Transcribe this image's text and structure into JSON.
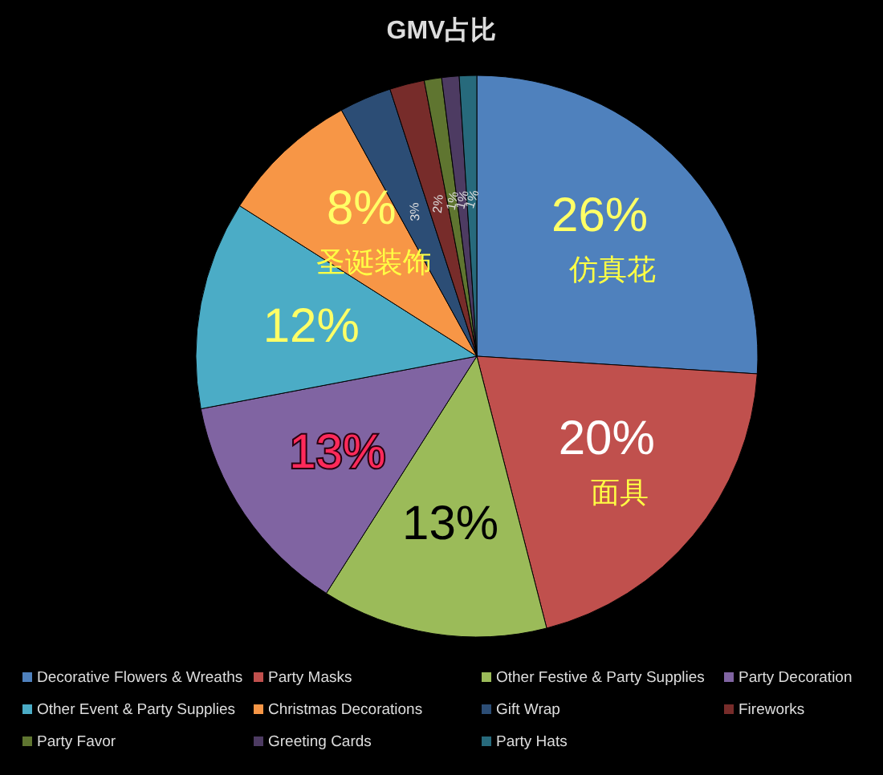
{
  "chart_data": {
    "type": "pie",
    "title": "GMV占比",
    "categories": [
      "Decorative Flowers & Wreaths",
      "Party Masks",
      "Other Festive & Party Supplies",
      "Party Decoration",
      "Other Event & Party Supplies",
      "Christmas Decorations",
      "Gift Wrap",
      "Fireworks",
      "Party Favor",
      "Greeting Cards",
      "Party Hats"
    ],
    "values": [
      26,
      20,
      13,
      13,
      12,
      8,
      3,
      2,
      1,
      1,
      1
    ],
    "value_labels": [
      "26%",
      "20%",
      "13%",
      "13%",
      "12%",
      "8%",
      "3%",
      "2%",
      "1%",
      "1%",
      "1%"
    ],
    "colors": [
      "#4f81bd",
      "#c0504d",
      "#9bbb59",
      "#8064a2",
      "#4bacc6",
      "#f79646",
      "#2c4d75",
      "#772c2a",
      "#5f7530",
      "#4d3b62",
      "#276a7c"
    ],
    "annotations": [
      {
        "text": "仿真花",
        "x": "Decorative Flowers & Wreaths"
      },
      {
        "text": "面具",
        "x": "Party Masks"
      },
      {
        "text": "圣诞装饰",
        "x": "Christmas Decorations"
      }
    ],
    "legend": "bottom"
  }
}
